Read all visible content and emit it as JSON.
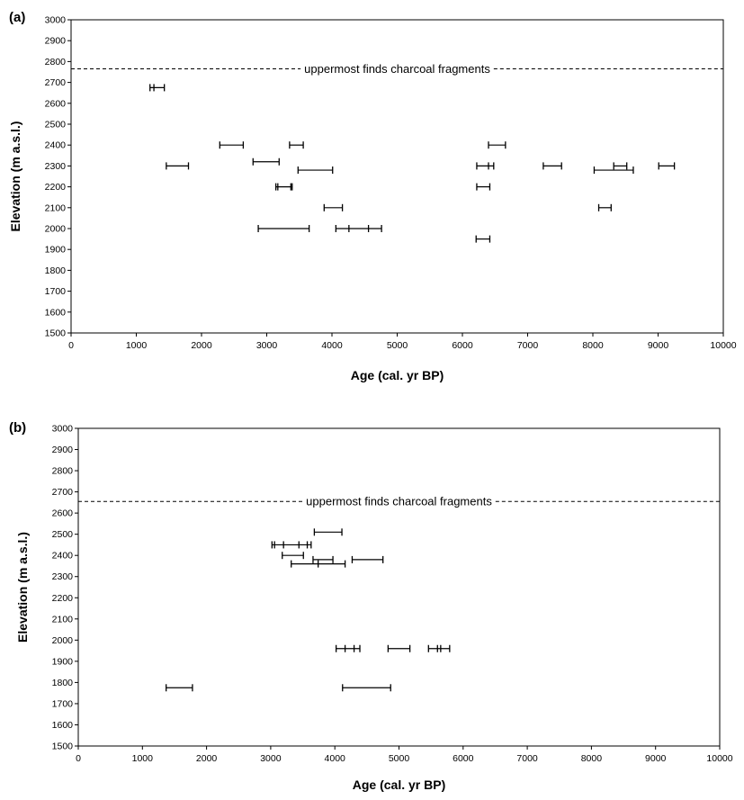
{
  "chart_data": [
    {
      "panel_label": "(a)",
      "type": "scatter",
      "marker": "horizontal-error-bar",
      "xlabel": "Age (cal. yr BP)",
      "ylabel": "Elevation (m a.s.l.)",
      "xlim": [
        0,
        10000
      ],
      "ylim": [
        1500,
        3000
      ],
      "xticks": [
        "0",
        "1000",
        "2000",
        "3000",
        "4000",
        "5000",
        "6000",
        "7000",
        "8000",
        "9000",
        "10000"
      ],
      "yticks": [
        "1500",
        "1600",
        "1700",
        "1800",
        "1900",
        "2000",
        "2100",
        "2200",
        "2300",
        "2400",
        "2500",
        "2600",
        "2700",
        "2800",
        "2900",
        "3000"
      ],
      "reference_line": {
        "y": 2765,
        "label": "uppermost finds charcoal fragments"
      },
      "intervals": [
        {
          "y": 2675,
          "x_min": 1210,
          "x_max": 1430
        },
        {
          "y": 2675,
          "x_min": 1270,
          "x_max": 1270
        },
        {
          "y": 2400,
          "x_min": 2280,
          "x_max": 2640
        },
        {
          "y": 2400,
          "x_min": 3350,
          "x_max": 3560
        },
        {
          "y": 2400,
          "x_min": 6400,
          "x_max": 6660
        },
        {
          "y": 2300,
          "x_min": 1460,
          "x_max": 1800
        },
        {
          "y": 2320,
          "x_min": 2790,
          "x_max": 3190
        },
        {
          "y": 2280,
          "x_min": 3480,
          "x_max": 4010
        },
        {
          "y": 2300,
          "x_min": 6220,
          "x_max": 6480
        },
        {
          "y": 2300,
          "x_min": 6400,
          "x_max": 6400
        },
        {
          "y": 2300,
          "x_min": 7240,
          "x_max": 7520
        },
        {
          "y": 2300,
          "x_min": 8320,
          "x_max": 8520
        },
        {
          "y": 2280,
          "x_min": 8020,
          "x_max": 8620
        },
        {
          "y": 2300,
          "x_min": 9010,
          "x_max": 9250
        },
        {
          "y": 2200,
          "x_min": 3140,
          "x_max": 3390
        },
        {
          "y": 2200,
          "x_min": 3170,
          "x_max": 3170
        },
        {
          "y": 2200,
          "x_min": 3370,
          "x_max": 3370
        },
        {
          "y": 2200,
          "x_min": 6220,
          "x_max": 6420
        },
        {
          "y": 2100,
          "x_min": 3880,
          "x_max": 4160
        },
        {
          "y": 2100,
          "x_min": 8090,
          "x_max": 8280
        },
        {
          "y": 2000,
          "x_min": 2870,
          "x_max": 3650
        },
        {
          "y": 2000,
          "x_min": 4060,
          "x_max": 4760
        },
        {
          "y": 2000,
          "x_min": 4260,
          "x_max": 4260
        },
        {
          "y": 2000,
          "x_min": 4560,
          "x_max": 4560
        },
        {
          "y": 1950,
          "x_min": 6210,
          "x_max": 6420
        }
      ]
    },
    {
      "panel_label": "(b)",
      "type": "scatter",
      "marker": "horizontal-error-bar",
      "xlabel": "Age (cal. yr BP)",
      "ylabel": "Elevation (m a.s.l.)",
      "xlim": [
        0,
        10000
      ],
      "ylim": [
        1500,
        3000
      ],
      "xticks": [
        "0",
        "1000",
        "2000",
        "3000",
        "4000",
        "5000",
        "6000",
        "7000",
        "8000",
        "9000",
        "10000"
      ],
      "yticks": [
        "1500",
        "1600",
        "1700",
        "1800",
        "1900",
        "2000",
        "2100",
        "2200",
        "2300",
        "2400",
        "2500",
        "2600",
        "2700",
        "2800",
        "2900",
        "3000"
      ],
      "reference_line": {
        "y": 2655,
        "label": "uppermost finds charcoal fragments"
      },
      "intervals": [
        {
          "y": 2510,
          "x_min": 3680,
          "x_max": 4110
        },
        {
          "y": 2450,
          "x_min": 3020,
          "x_max": 3630
        },
        {
          "y": 2450,
          "x_min": 3060,
          "x_max": 3060
        },
        {
          "y": 2450,
          "x_min": 3200,
          "x_max": 3200
        },
        {
          "y": 2450,
          "x_min": 3440,
          "x_max": 3440
        },
        {
          "y": 2450,
          "x_min": 3570,
          "x_max": 3570
        },
        {
          "y": 2400,
          "x_min": 3180,
          "x_max": 3510
        },
        {
          "y": 2380,
          "x_min": 3660,
          "x_max": 3970
        },
        {
          "y": 2380,
          "x_min": 4270,
          "x_max": 4750
        },
        {
          "y": 2360,
          "x_min": 3320,
          "x_max": 4160
        },
        {
          "y": 2360,
          "x_min": 3740,
          "x_max": 3740
        },
        {
          "y": 1960,
          "x_min": 4020,
          "x_max": 4390
        },
        {
          "y": 1960,
          "x_min": 4160,
          "x_max": 4160
        },
        {
          "y": 1960,
          "x_min": 4300,
          "x_max": 4300
        },
        {
          "y": 1960,
          "x_min": 4830,
          "x_max": 5170
        },
        {
          "y": 1960,
          "x_min": 5460,
          "x_max": 5790
        },
        {
          "y": 1960,
          "x_min": 5600,
          "x_max": 5600
        },
        {
          "y": 1960,
          "x_min": 5650,
          "x_max": 5650
        },
        {
          "y": 1775,
          "x_min": 1370,
          "x_max": 1780
        },
        {
          "y": 1775,
          "x_min": 4120,
          "x_max": 4870
        }
      ]
    }
  ]
}
